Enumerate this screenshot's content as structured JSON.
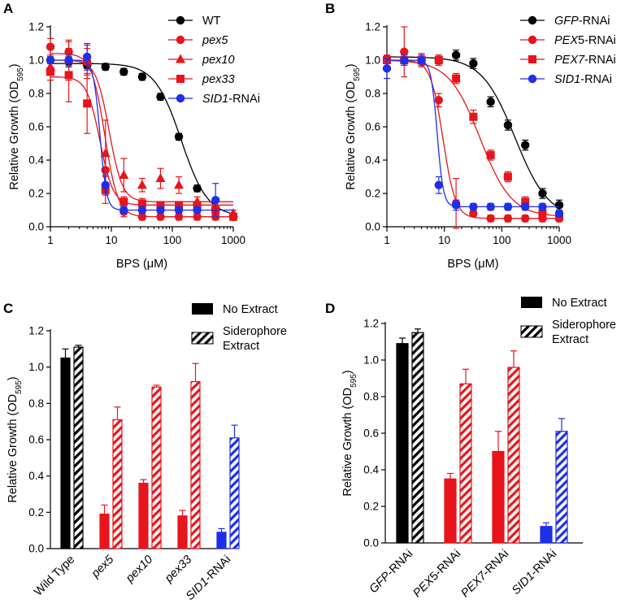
{
  "chart_data": [
    {
      "panel": "A",
      "type": "scatter",
      "xscale": "log",
      "xlim": [
        1,
        1000
      ],
      "ylim": [
        0,
        1.2
      ],
      "xticks": [
        "1",
        "10",
        "100",
        "1000"
      ],
      "yticks": [
        "0.0",
        "0.2",
        "0.4",
        "0.6",
        "0.8",
        "1.0",
        "1.2"
      ],
      "xlabel": "BPS (μM)",
      "ylabel": "Relative Growth (OD595)",
      "ylabel_main": "Relative Growth (OD",
      "ylabel_sub": "595",
      "ylabel_end": ")",
      "legend_position": "top-right",
      "series": [
        {
          "name": "WT",
          "italic_part": "",
          "plain_part": "WT",
          "color": "#000000",
          "marker": "circle",
          "x": [
            1,
            2,
            4,
            8,
            16,
            32,
            64,
            128,
            256,
            512,
            1000
          ],
          "y": [
            1.0,
            0.99,
            0.97,
            0.96,
            0.93,
            0.9,
            0.78,
            0.54,
            0.23,
            0.1,
            0.06
          ],
          "err": [
            0.02,
            0.03,
            0.02,
            0.02,
            0.02,
            0.02,
            0.02,
            0.02,
            0.02,
            0.02,
            0.02
          ],
          "fit": {
            "top": 0.98,
            "bottom": 0.06,
            "ec50": 140,
            "hill": 2.0
          }
        },
        {
          "name": "pex5",
          "italic_part": "pex5",
          "plain_part": "",
          "color": "#e8141b",
          "marker": "circle",
          "x": [
            1,
            2,
            4,
            8,
            16,
            32,
            64,
            128,
            256,
            512,
            1000
          ],
          "y": [
            1.08,
            1.05,
            0.99,
            0.34,
            0.09,
            0.06,
            0.06,
            0.06,
            0.06,
            0.06,
            0.06
          ],
          "err": [
            0.05,
            0.06,
            0.08,
            0.1,
            0.03,
            0.02,
            0.02,
            0.02,
            0.02,
            0.02,
            0.02
          ],
          "fit": {
            "top": 1.04,
            "bottom": 0.06,
            "ec50": 7.8,
            "hill": 4.0
          }
        },
        {
          "name": "pex10",
          "italic_part": "pex10",
          "plain_part": "",
          "color": "#e8141b",
          "marker": "triangle",
          "x": [
            1,
            2,
            4,
            8,
            16,
            32,
            64,
            128,
            256,
            512,
            1000
          ],
          "y": [
            0.96,
            1.0,
            0.99,
            0.44,
            0.31,
            0.25,
            0.29,
            0.25,
            0.15,
            0.13,
            0.08
          ],
          "err": [
            0.05,
            0.12,
            0.1,
            0.2,
            0.1,
            0.04,
            0.06,
            0.05,
            0.03,
            0.03,
            0.02
          ],
          "fit": {
            "top": 1.0,
            "bottom": 0.15,
            "ec50": 9.2,
            "hill": 4.0
          }
        },
        {
          "name": "pex33",
          "italic_part": "pex33",
          "plain_part": "",
          "color": "#e8141b",
          "marker": "square",
          "x": [
            1,
            2,
            4,
            8,
            16,
            32,
            64,
            128,
            256,
            512,
            1000
          ],
          "y": [
            0.93,
            0.91,
            0.74,
            0.22,
            0.15,
            0.14,
            0.13,
            0.13,
            0.13,
            0.1,
            0.06
          ],
          "err": [
            0.05,
            0.16,
            0.18,
            0.08,
            0.03,
            0.03,
            0.02,
            0.02,
            0.02,
            0.02,
            0.02
          ],
          "fit": {
            "top": 0.9,
            "bottom": 0.13,
            "ec50": 6.5,
            "hill": 4.0
          }
        },
        {
          "name": "SID1-RNAi",
          "italic_part": "SID1",
          "plain_part": "-RNAi",
          "color": "#1f2ee8",
          "marker": "circle",
          "x": [
            1,
            2,
            4,
            8,
            16,
            32,
            64,
            128,
            256,
            512
          ],
          "y": [
            1.0,
            1.0,
            1.02,
            0.25,
            0.1,
            0.1,
            0.1,
            0.1,
            0.1,
            0.16
          ],
          "err": [
            0.02,
            0.03,
            0.08,
            0.06,
            0.02,
            0.02,
            0.02,
            0.02,
            0.02,
            0.1
          ],
          "fit": {
            "top": 1.0,
            "bottom": 0.1,
            "ec50": 6.5,
            "hill": 8.0
          }
        }
      ]
    },
    {
      "panel": "B",
      "type": "scatter",
      "xscale": "log",
      "xlim": [
        1,
        1000
      ],
      "ylim": [
        0,
        1.2
      ],
      "xticks": [
        "1",
        "10",
        "100",
        "1000"
      ],
      "yticks": [
        "0.0",
        "0.2",
        "0.4",
        "0.6",
        "0.8",
        "1.0",
        "1.2"
      ],
      "xlabel": "BPS (μM)",
      "ylabel": "Relative Growth (OD595)",
      "ylabel_main": "Relative Growth (OD",
      "ylabel_sub": "595",
      "ylabel_end": ")",
      "legend_position": "top-right",
      "series": [
        {
          "name": "GFP-RNAi",
          "italic_part": "GFP",
          "plain_part": "-RNAi",
          "color": "#000000",
          "marker": "circle",
          "x": [
            1,
            2,
            4,
            8,
            16,
            32,
            64,
            128,
            256,
            512,
            1000
          ],
          "y": [
            1.0,
            1.0,
            1.0,
            1.0,
            1.03,
            0.98,
            0.75,
            0.61,
            0.49,
            0.2,
            0.13
          ],
          "err": [
            0.02,
            0.03,
            0.03,
            0.03,
            0.03,
            0.03,
            0.03,
            0.03,
            0.03,
            0.03,
            0.03
          ],
          "fit": {
            "top": 1.02,
            "bottom": 0.05,
            "ec50": 170,
            "hill": 1.5
          }
        },
        {
          "name": "PEX5-RNAi",
          "italic_part": "PEX",
          "plain_part": "5-RNAi",
          "color": "#e8141b",
          "marker": "circle",
          "x": [
            1,
            2,
            4,
            8,
            16,
            32,
            64,
            128,
            256,
            512,
            1000
          ],
          "y": [
            1.01,
            1.05,
            1.0,
            0.76,
            0.14,
            0.08,
            0.05,
            0.05,
            0.05,
            0.05,
            0.05
          ],
          "err": [
            0.02,
            0.15,
            0.04,
            0.04,
            0.15,
            0.02,
            0.02,
            0.02,
            0.02,
            0.02,
            0.02
          ],
          "fit": {
            "top": 1.0,
            "bottom": 0.05,
            "ec50": 9.5,
            "hill": 4.0
          }
        },
        {
          "name": "PEX7-RNAi",
          "italic_part": "PEX7",
          "plain_part": "-RNAi",
          "color": "#e8141b",
          "marker": "square",
          "x": [
            1,
            2,
            4,
            8,
            16,
            32,
            64,
            128,
            256,
            512,
            1000
          ],
          "y": [
            1.0,
            1.0,
            1.0,
            1.0,
            0.89,
            0.66,
            0.43,
            0.3,
            0.15,
            0.08,
            0.06
          ],
          "err": [
            0.02,
            0.03,
            0.03,
            0.03,
            0.03,
            0.04,
            0.03,
            0.03,
            0.03,
            0.03,
            0.02
          ],
          "fit": {
            "top": 1.0,
            "bottom": 0.06,
            "ec50": 42,
            "hill": 1.6
          }
        },
        {
          "name": "SID1-RNAi",
          "italic_part": "SID1",
          "plain_part": "-RNAi",
          "color": "#1f2ee8",
          "marker": "circle",
          "x": [
            1,
            2,
            4,
            8,
            16,
            32,
            64,
            128,
            256,
            512,
            1000
          ],
          "y": [
            0.95,
            1.0,
            1.0,
            0.25,
            0.13,
            0.12,
            0.12,
            0.12,
            0.12,
            0.12,
            0.08
          ],
          "err": [
            0.06,
            0.03,
            0.03,
            0.05,
            0.03,
            0.02,
            0.02,
            0.02,
            0.02,
            0.02,
            0.02
          ],
          "fit": {
            "top": 1.0,
            "bottom": 0.12,
            "ec50": 7.5,
            "hill": 8.0
          }
        }
      ]
    },
    {
      "panel": "C",
      "type": "bar",
      "ylim": [
        0,
        1.2
      ],
      "yticks": [
        "0.0",
        "0.2",
        "0.4",
        "0.6",
        "0.8",
        "1.0",
        "1.2"
      ],
      "ylabel": "Relative Growth (OD595)",
      "ylabel_main": "Relative Growth (OD",
      "ylabel_sub": "595",
      "ylabel_end": ")",
      "legend_position": "top-right",
      "legend": [
        {
          "label": "No Extract",
          "pattern": "solid"
        },
        {
          "label_lines": [
            "Siderophore",
            "Extract"
          ],
          "pattern": "hatched"
        }
      ],
      "categories": [
        {
          "italic_part": "",
          "plain_part": "Wild Type",
          "color": "#000000"
        },
        {
          "italic_part": "pex5",
          "plain_part": "",
          "color": "#e8141b"
        },
        {
          "italic_part": "pex10",
          "plain_part": "",
          "color": "#e8141b"
        },
        {
          "italic_part": "pex33",
          "plain_part": "",
          "color": "#e8141b"
        },
        {
          "italic_part": "SID1",
          "plain_part": "-RNAi",
          "color": "#1f2ee8"
        }
      ],
      "series": [
        {
          "name": "No Extract",
          "values": [
            1.05,
            0.19,
            0.36,
            0.18,
            0.09
          ],
          "err": [
            0.05,
            0.05,
            0.02,
            0.03,
            0.02
          ]
        },
        {
          "name": "Siderophore Extract",
          "values": [
            1.11,
            0.71,
            0.89,
            0.92,
            0.61
          ],
          "err": [
            0.01,
            0.07,
            0.01,
            0.1,
            0.07
          ]
        }
      ]
    },
    {
      "panel": "D",
      "type": "bar",
      "ylim": [
        0,
        1.2
      ],
      "yticks": [
        "0.0",
        "0.2",
        "0.4",
        "0.6",
        "0.8",
        "1.0",
        "1.2"
      ],
      "ylabel": "Relative Growth (OD595)",
      "ylabel_main": "Relative Growth (OD",
      "ylabel_sub": "595",
      "ylabel_end": ")",
      "legend_position": "top-right",
      "legend": [
        {
          "label": "No Extract",
          "pattern": "solid"
        },
        {
          "label_lines": [
            "Siderophore",
            "Extract"
          ],
          "pattern": "hatched"
        }
      ],
      "categories": [
        {
          "italic_part": "GFP",
          "plain_part": "-RNAi",
          "color": "#000000"
        },
        {
          "italic_part": "PEX",
          "plain_part": "5-RNAi",
          "color": "#e8141b"
        },
        {
          "italic_part": "PEX7",
          "plain_part": "-RNAi",
          "color": "#e8141b"
        },
        {
          "italic_part": "SID1",
          "plain_part": "-RNAi",
          "color": "#1f2ee8"
        }
      ],
      "series": [
        {
          "name": "No Extract",
          "values": [
            1.09,
            0.35,
            0.5,
            0.09
          ],
          "err": [
            0.03,
            0.03,
            0.11,
            0.02
          ]
        },
        {
          "name": "Siderophore Extract",
          "values": [
            1.15,
            0.87,
            0.96,
            0.61
          ],
          "err": [
            0.02,
            0.08,
            0.09,
            0.07
          ]
        }
      ]
    }
  ]
}
